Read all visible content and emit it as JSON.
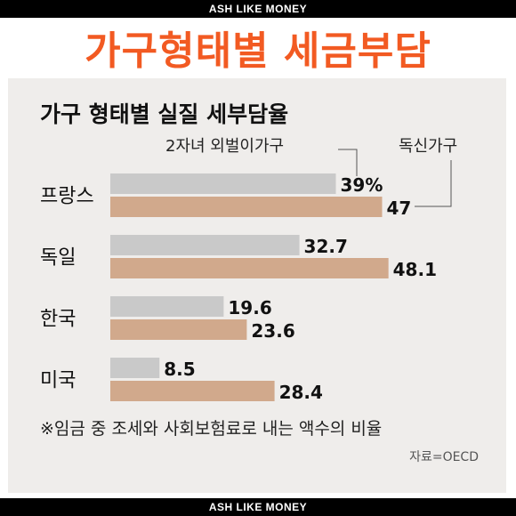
{
  "banner": {
    "top": "ASH LIKE MONEY",
    "bottom": "ASH LIKE MONEY"
  },
  "headline": "가구형태별 세금부담",
  "colors": {
    "headline": "#f25a22",
    "series1": "#c9c9c9",
    "series2": "#d1a98c",
    "panel": "#efedeb"
  },
  "chart_data": {
    "type": "bar",
    "orientation": "horizontal",
    "title": "가구 형태별 실질 세부담율",
    "categories": [
      "프랑스",
      "독일",
      "한국",
      "미국"
    ],
    "series": [
      {
        "name": "2자녀 외벌이가구",
        "values": [
          39,
          32.7,
          19.6,
          8.5
        ],
        "labels": [
          "39%",
          "32.7",
          "19.6",
          "8.5"
        ]
      },
      {
        "name": "독신가구",
        "values": [
          47,
          48.1,
          23.6,
          28.4
        ],
        "labels": [
          "47",
          "48.1",
          "23.6",
          "28.4"
        ]
      }
    ],
    "unit": "%",
    "xlim": [
      0,
      50
    ],
    "grid": false,
    "legend": "top-right"
  },
  "footnote": "※임금 중 조세와 사회보험료로 내는 액수의 비율",
  "source": "자료=OECD"
}
